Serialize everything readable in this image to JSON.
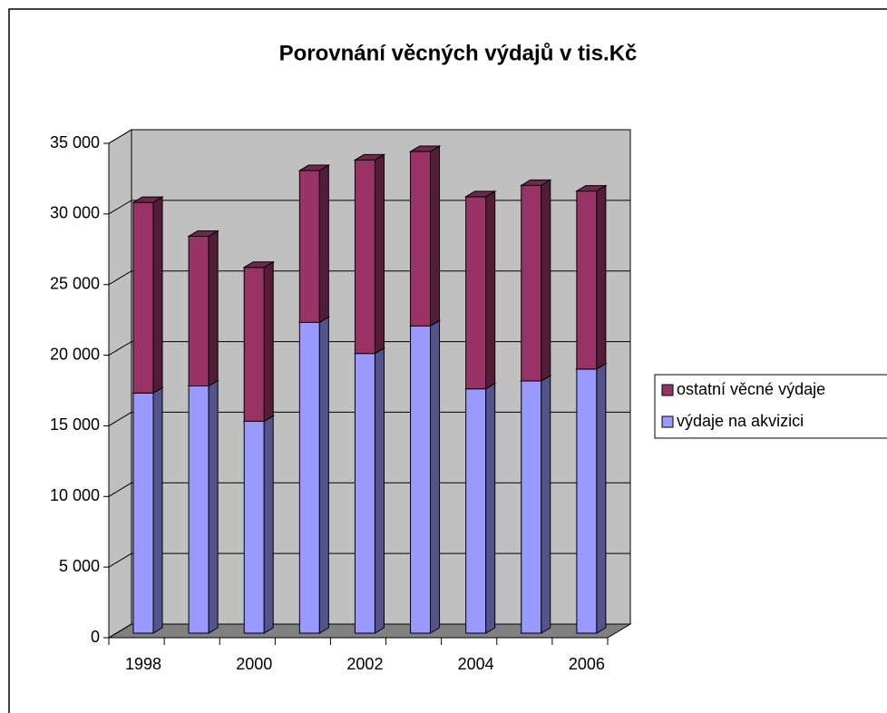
{
  "chart_data": {
    "type": "bar",
    "stacked": true,
    "title": "Porovnání věcných výdajů v tis.Kč",
    "categories": [
      "1998",
      null,
      "2000",
      null,
      "2002",
      null,
      "2004",
      null,
      "2006"
    ],
    "series": [
      {
        "name": "výdaje na akvizici",
        "color": "#9999ff",
        "values": [
          17000,
          17500,
          15000,
          22000,
          19800,
          21750,
          17300,
          17850,
          18700
        ]
      },
      {
        "name": "ostatní věcné výdaje",
        "color": "#993366",
        "values": [
          13500,
          10600,
          10900,
          10750,
          13700,
          12350,
          13600,
          13850,
          12600
        ]
      }
    ],
    "ylim": [
      0,
      35000
    ],
    "yticks": [
      {
        "value": 0,
        "label": "0"
      },
      {
        "value": 5000,
        "label": "5 000"
      },
      {
        "value": 10000,
        "label": "10 000"
      },
      {
        "value": 15000,
        "label": "15 000"
      },
      {
        "value": 20000,
        "label": "20 000"
      },
      {
        "value": 25000,
        "label": "25 000"
      },
      {
        "value": 30000,
        "label": "30 000"
      },
      {
        "value": 35000,
        "label": "35 000"
      }
    ],
    "grid": true,
    "legend": "right"
  }
}
